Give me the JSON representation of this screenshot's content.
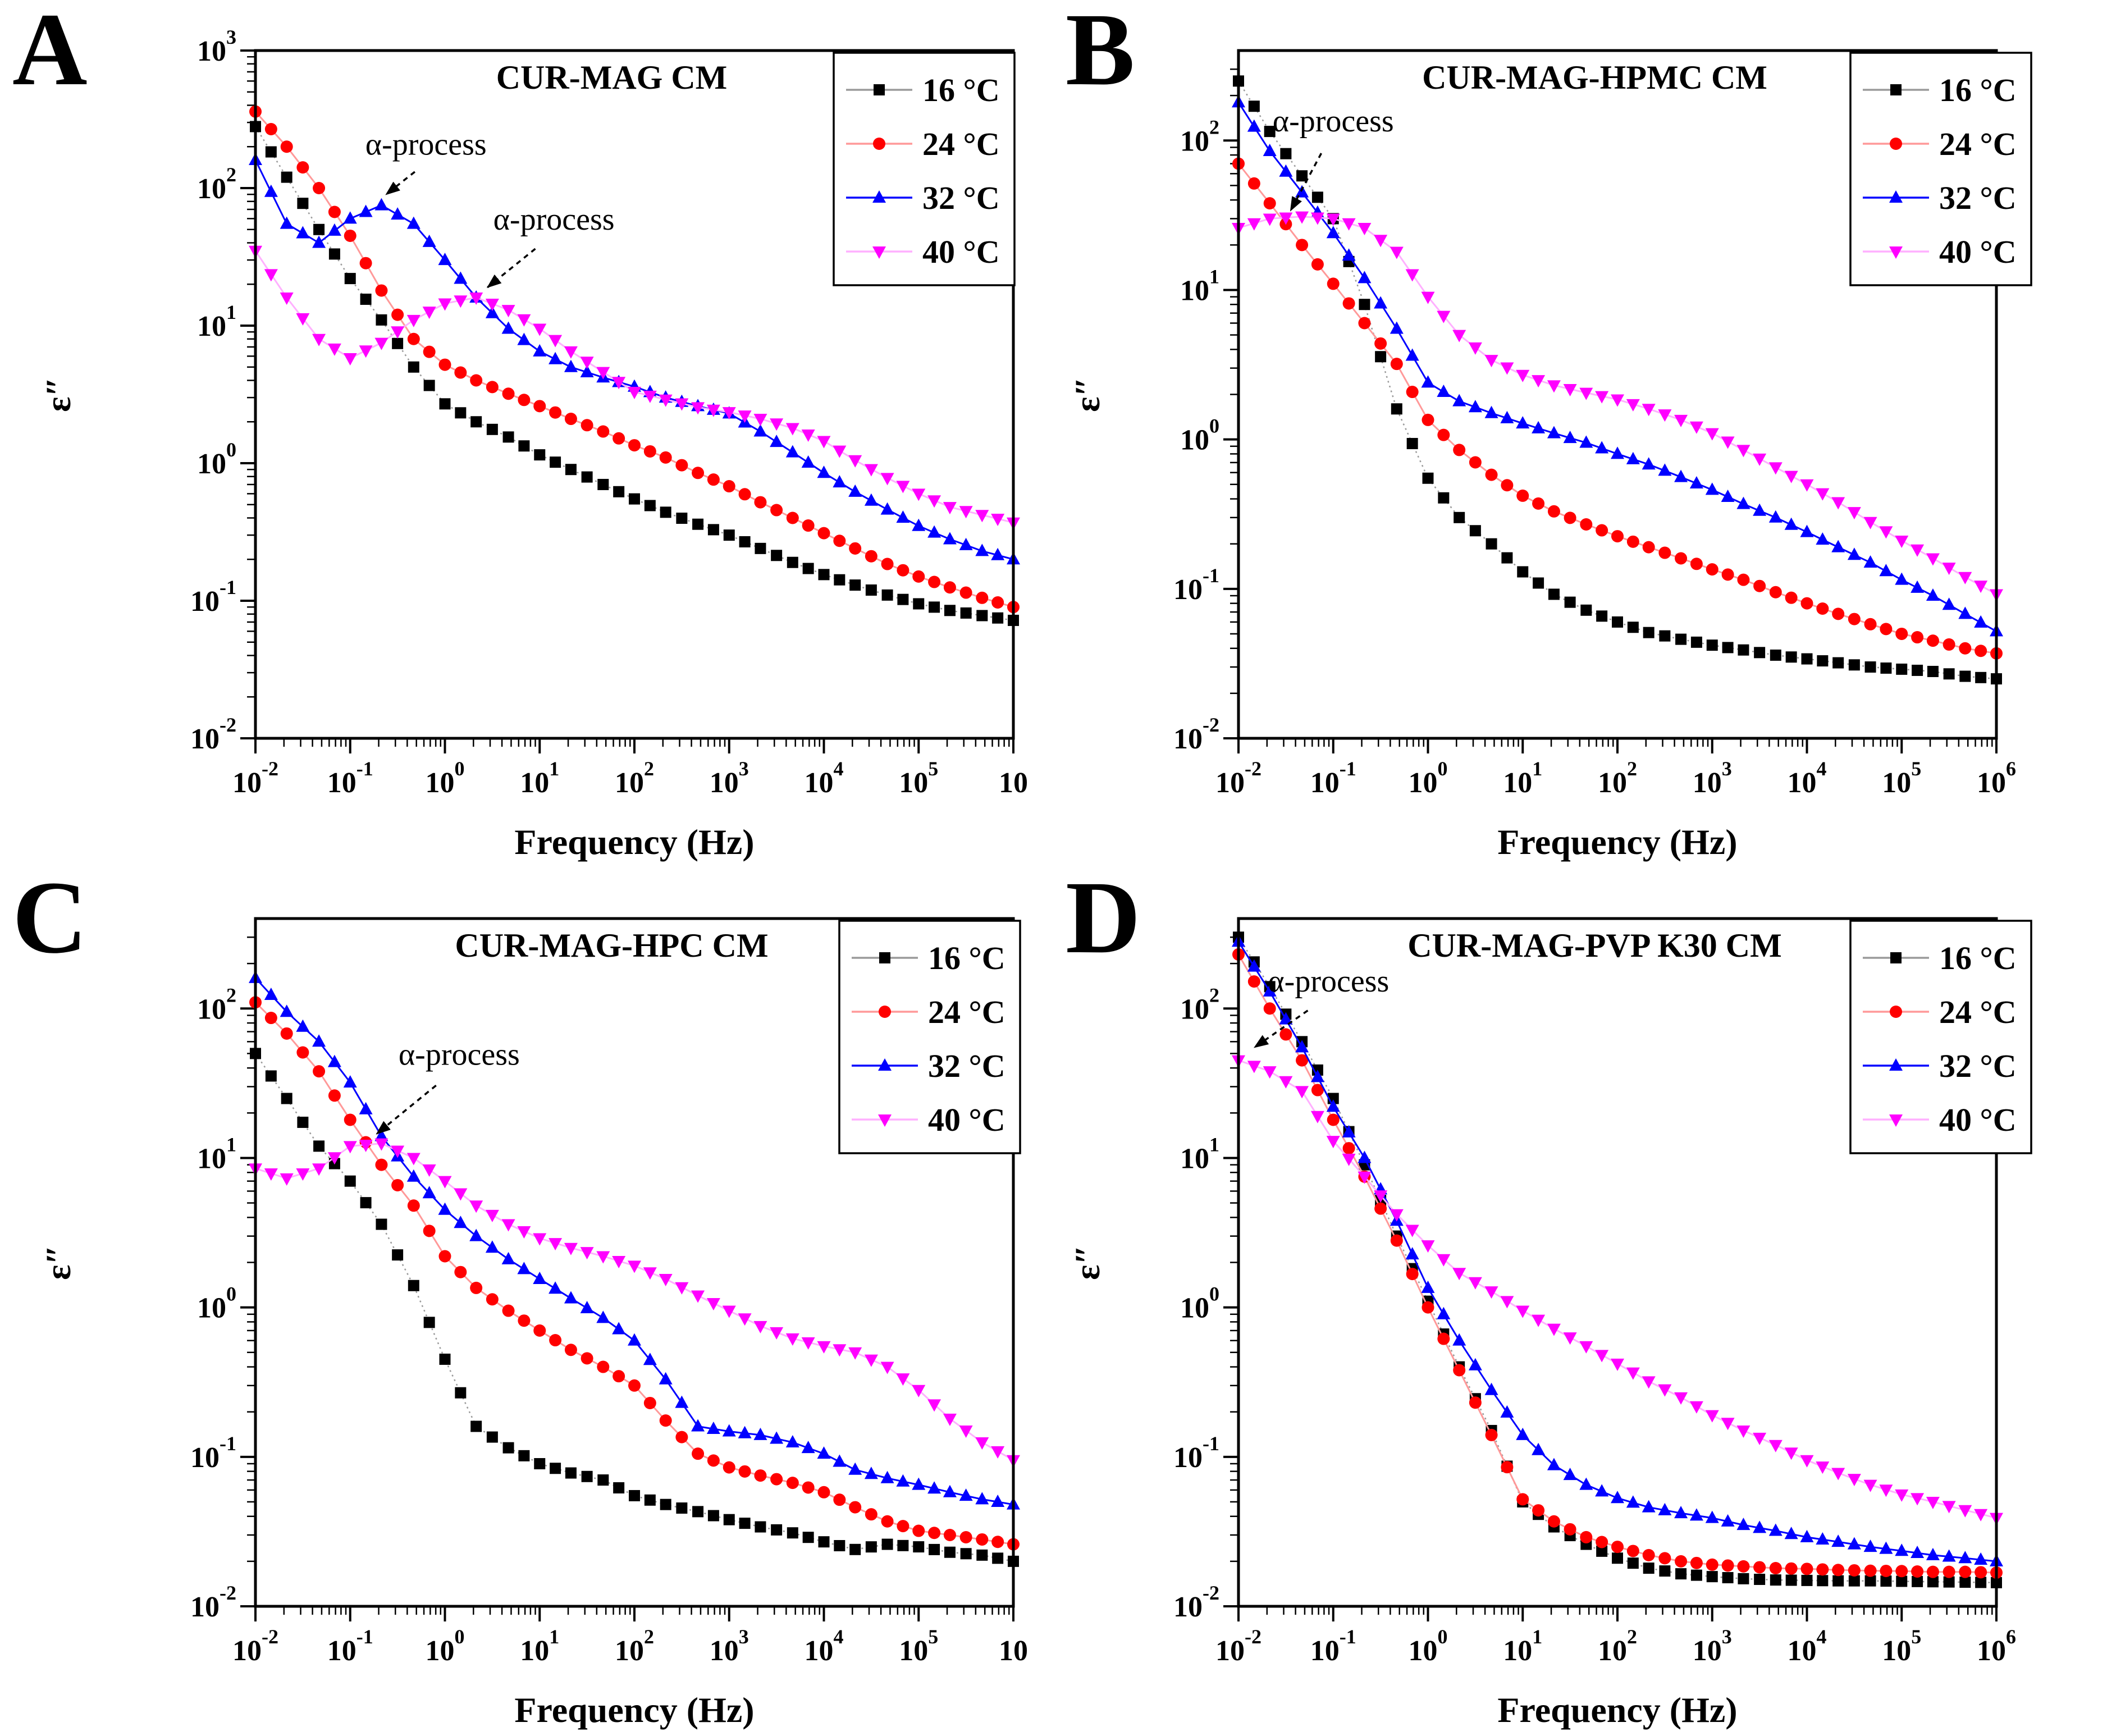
{
  "figure": {
    "xlabel": "Frequency (Hz)",
    "ylabel": "ε″",
    "legend": [
      {
        "label": "16 °C",
        "color": "#000000",
        "line_color": "#9a9a9a",
        "marker": "square"
      },
      {
        "label": "24 °C",
        "color": "#ff0000",
        "line_color": "#ff9999",
        "marker": "circle"
      },
      {
        "label": "32 °C",
        "color": "#0000ff",
        "line_color": "#0000ff",
        "marker": "triangle-up"
      },
      {
        "label": "40 °C",
        "color": "#ff00ff",
        "line_color": "#ffb0ff",
        "marker": "triangle-down"
      }
    ]
  },
  "x_log10": [
    -2,
    -1.67,
    -1.33,
    -1,
    -0.67,
    -0.33,
    0,
    0.33,
    0.67,
    1,
    1.33,
    1.67,
    2,
    2.33,
    2.67,
    3,
    3.33,
    3.67,
    4,
    4.33,
    4.67,
    5,
    5.33,
    5.67,
    6
  ],
  "chart_data": [
    {
      "letter": "A",
      "type": "line",
      "title": "CUR-MAG CM",
      "xlabel": "Frequency (Hz)",
      "ylabel": "ε″",
      "xlim": [
        0.01,
        1000000
      ],
      "ylim": [
        0.01,
        1000
      ],
      "x_tick_base": "10",
      "x_tick_exponents": [
        "-2",
        "-1",
        "0",
        "1",
        "2",
        "3",
        "4",
        "5",
        ""
      ],
      "y_tick_exponents": [
        "3",
        "2",
        "1",
        "0",
        "-1",
        "-2"
      ],
      "series": [
        {
          "name": "16 °C",
          "values": [
            280,
            120,
            50,
            22,
            11,
            5,
            2.7,
            2.0,
            1.55,
            1.15,
            0.9,
            0.7,
            0.55,
            0.44,
            0.36,
            0.3,
            0.24,
            0.19,
            0.155,
            0.13,
            0.11,
            0.095,
            0.085,
            0.078,
            0.072
          ]
        },
        {
          "name": "24 °C",
          "values": [
            360,
            200,
            100,
            45,
            18,
            8,
            5.2,
            4.0,
            3.2,
            2.6,
            2.1,
            1.7,
            1.35,
            1.1,
            0.85,
            0.68,
            0.52,
            0.4,
            0.31,
            0.24,
            0.185,
            0.15,
            0.125,
            0.105,
            0.09
          ]
        },
        {
          "name": "32 °C",
          "values": [
            160,
            55,
            40,
            60,
            75,
            55,
            30,
            16,
            9.5,
            6.5,
            5.0,
            4.2,
            3.6,
            3.0,
            2.6,
            2.3,
            1.7,
            1.2,
            0.85,
            0.62,
            0.46,
            0.35,
            0.28,
            0.23,
            0.2
          ]
        },
        {
          "name": "40 °C",
          "values": [
            35,
            16,
            8,
            5.8,
            7.5,
            11,
            14.5,
            16,
            13,
            9.5,
            6.5,
            4.6,
            3.3,
            2.9,
            2.55,
            2.35,
            2.1,
            1.8,
            1.45,
            1.05,
            0.78,
            0.6,
            0.48,
            0.42,
            0.37
          ]
        }
      ],
      "annotations": [
        {
          "text": "α-process",
          "tx": -0.2,
          "ty": 175,
          "ax": -0.62,
          "ay": 90
        },
        {
          "text": "α-process",
          "tx": 1.15,
          "ty": 50,
          "ax": 0.45,
          "ay": 19
        }
      ]
    },
    {
      "letter": "B",
      "type": "line",
      "title": "CUR-MAG-HPMC CM",
      "xlabel": "Frequency (Hz)",
      "ylabel": "ε″",
      "xlim": [
        0.01,
        1000000
      ],
      "ylim": [
        0.01,
        400
      ],
      "x_tick_base": "10",
      "x_tick_exponents": [
        "-2",
        "-1",
        "0",
        "1",
        "2",
        "3",
        "4",
        "5",
        "6"
      ],
      "y_tick_exponents": [
        "2",
        "1",
        "0",
        "-1",
        "-2"
      ],
      "series": [
        {
          "name": "16 °C",
          "values": [
            250,
            115,
            58,
            30,
            8,
            1.6,
            0.55,
            0.3,
            0.2,
            0.13,
            0.092,
            0.072,
            0.06,
            0.051,
            0.046,
            0.042,
            0.039,
            0.036,
            0.034,
            0.032,
            0.03,
            0.029,
            0.028,
            0.026,
            0.025
          ]
        },
        {
          "name": "24 °C",
          "values": [
            70,
            38,
            20,
            11,
            6,
            3.2,
            1.35,
            0.85,
            0.58,
            0.42,
            0.33,
            0.27,
            0.225,
            0.19,
            0.16,
            0.135,
            0.115,
            0.095,
            0.08,
            0.068,
            0.058,
            0.05,
            0.045,
            0.04,
            0.037
          ]
        },
        {
          "name": "32 °C",
          "values": [
            180,
            85,
            45,
            24,
            12,
            5.5,
            2.4,
            1.8,
            1.5,
            1.28,
            1.1,
            0.95,
            0.8,
            0.68,
            0.56,
            0.46,
            0.37,
            0.3,
            0.24,
            0.19,
            0.15,
            0.115,
            0.09,
            0.068,
            0.052
          ]
        },
        {
          "name": "40 °C",
          "values": [
            26,
            30,
            31,
            30,
            26,
            18,
            9,
            5,
            3.4,
            2.7,
            2.3,
            2.05,
            1.85,
            1.6,
            1.35,
            1.1,
            0.85,
            0.65,
            0.5,
            0.38,
            0.28,
            0.21,
            0.16,
            0.12,
            0.092
          ]
        }
      ],
      "annotations": [
        {
          "text": "α-process",
          "tx": -1.0,
          "ty": 115,
          "ax": -1.45,
          "ay": 34
        }
      ]
    },
    {
      "letter": "C",
      "type": "line",
      "title": "CUR-MAG-HPC CM",
      "xlabel": "Frequency (Hz)",
      "ylabel": "ε″",
      "xlim": [
        0.01,
        1000000
      ],
      "ylim": [
        0.01,
        400
      ],
      "x_tick_base": "10",
      "x_tick_exponents": [
        "-2",
        "-1",
        "0",
        "1",
        "2",
        "3",
        "4",
        "5",
        ""
      ],
      "y_tick_exponents": [
        "2",
        "1",
        "0",
        "-1",
        "-2"
      ],
      "series": [
        {
          "name": "16 °C",
          "values": [
            50,
            25,
            12,
            7,
            3.6,
            1.4,
            0.45,
            0.16,
            0.115,
            0.09,
            0.078,
            0.07,
            0.055,
            0.048,
            0.043,
            0.038,
            0.034,
            0.031,
            0.027,
            0.024,
            0.026,
            0.025,
            0.023,
            0.022,
            0.02
          ]
        },
        {
          "name": "24 °C",
          "values": [
            110,
            68,
            38,
            18,
            9,
            4.8,
            2.2,
            1.35,
            0.95,
            0.7,
            0.52,
            0.4,
            0.3,
            0.175,
            0.105,
            0.085,
            0.075,
            0.067,
            0.058,
            0.046,
            0.037,
            0.032,
            0.03,
            0.028,
            0.026
          ]
        },
        {
          "name": "32 °C",
          "values": [
            160,
            95,
            60,
            32,
            14,
            7.5,
            4.5,
            3.0,
            2.1,
            1.55,
            1.15,
            0.85,
            0.6,
            0.33,
            0.16,
            0.148,
            0.14,
            0.125,
            0.105,
            0.082,
            0.072,
            0.065,
            0.058,
            0.052,
            0.048
          ]
        },
        {
          "name": "40 °C",
          "values": [
            8.5,
            7.3,
            8.5,
            12,
            12.5,
            10,
            7.0,
            4.8,
            3.6,
            2.9,
            2.5,
            2.2,
            1.9,
            1.55,
            1.2,
            0.95,
            0.75,
            0.62,
            0.55,
            0.5,
            0.4,
            0.28,
            0.18,
            0.125,
            0.095
          ]
        }
      ],
      "annotations": [
        {
          "text": "α-process",
          "tx": 0.15,
          "ty": 42,
          "ax": -0.72,
          "ay": 14.5
        }
      ]
    },
    {
      "letter": "D",
      "type": "line",
      "title": "CUR-MAG-PVP K30 CM",
      "xlabel": "Frequency (Hz)",
      "ylabel": "ε″",
      "xlim": [
        0.01,
        1000000
      ],
      "ylim": [
        0.01,
        400
      ],
      "x_tick_base": "10",
      "x_tick_exponents": [
        "-2",
        "-1",
        "0",
        "1",
        "2",
        "3",
        "4",
        "5",
        "6"
      ],
      "y_tick_exponents": [
        "2",
        "1",
        "0",
        "-1",
        "-2"
      ],
      "series": [
        {
          "name": "16 °C",
          "values": [
            300,
            140,
            60,
            25,
            9,
            3.0,
            1.1,
            0.4,
            0.15,
            0.05,
            0.034,
            0.026,
            0.021,
            0.018,
            0.0165,
            0.0158,
            0.0153,
            0.015,
            0.0149,
            0.0148,
            0.0148,
            0.0147,
            0.0146,
            0.0145,
            0.0144
          ]
        },
        {
          "name": "24 °C",
          "values": [
            230,
            100,
            45,
            18,
            7.5,
            2.8,
            1.0,
            0.38,
            0.14,
            0.052,
            0.037,
            0.029,
            0.025,
            0.022,
            0.02,
            0.019,
            0.0185,
            0.018,
            0.0178,
            0.0175,
            0.0173,
            0.0172,
            0.017,
            0.017,
            0.0168
          ]
        },
        {
          "name": "32 °C",
          "values": [
            280,
            130,
            55,
            22,
            10,
            3.8,
            1.35,
            0.6,
            0.28,
            0.14,
            0.088,
            0.065,
            0.053,
            0.046,
            0.042,
            0.039,
            0.035,
            0.032,
            0.029,
            0.027,
            0.025,
            0.0235,
            0.022,
            0.021,
            0.02
          ]
        },
        {
          "name": "40 °C",
          "values": [
            45,
            38,
            28,
            13,
            7.5,
            4.2,
            2.6,
            1.7,
            1.28,
            0.95,
            0.72,
            0.55,
            0.42,
            0.32,
            0.25,
            0.19,
            0.15,
            0.12,
            0.095,
            0.078,
            0.065,
            0.056,
            0.05,
            0.044,
            0.039
          ]
        }
      ],
      "annotations": [
        {
          "text": "α-process",
          "tx": -1.05,
          "ty": 130,
          "ax": -1.83,
          "ay": 55
        }
      ]
    }
  ]
}
